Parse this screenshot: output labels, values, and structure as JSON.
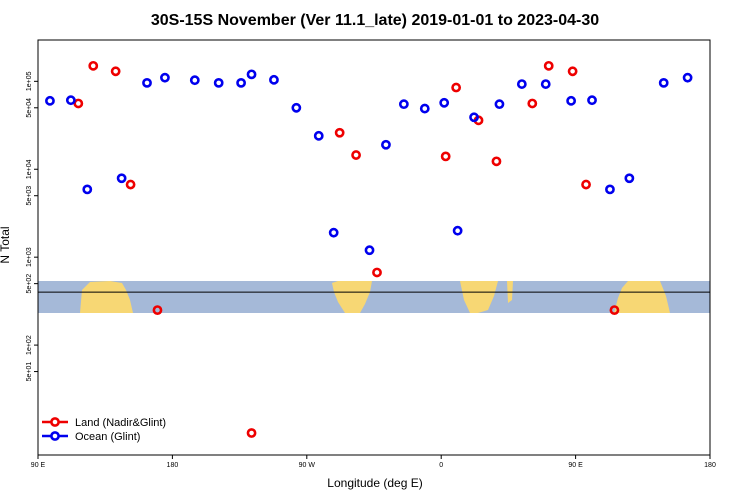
{
  "chart_data": {
    "type": "scatter",
    "title": "30S-15S November (Ver 11.1_late)   2019-01-01 to 2023-04-30",
    "xlabel": "Longitude (deg E)",
    "ylabel": "N Total",
    "xlim": [
      90,
      540
    ],
    "ylog": true,
    "x_ticks": [
      {
        "value": 90,
        "label": "90 E"
      },
      {
        "value": 180,
        "label": "180"
      },
      {
        "value": 270,
        "label": "90 W"
      },
      {
        "value": 360,
        "label": "0"
      },
      {
        "value": 450,
        "label": "90 E"
      },
      {
        "value": 540,
        "label": "180"
      }
    ],
    "y_ticks": [
      {
        "value": 50,
        "label": "5e+01"
      },
      {
        "value": 100,
        "label": "1e+02"
      },
      {
        "value": 500,
        "label": "5e+02"
      },
      {
        "value": 1000,
        "label": "1e+03"
      },
      {
        "value": 5000,
        "label": "5e+03"
      },
      {
        "value": 10000,
        "label": "1e+04"
      },
      {
        "value": 50000,
        "label": "5e+04"
      },
      {
        "value": 100000,
        "label": "1e+05"
      }
    ],
    "reference_line": 400,
    "series": [
      {
        "name": "Land (Nadir&Glint)",
        "color": "#ee0000",
        "points": [
          [
            117,
            56000
          ],
          [
            127,
            150000
          ],
          [
            142,
            130000
          ],
          [
            152,
            6700
          ],
          [
            170,
            250
          ],
          [
            233,
            10
          ],
          [
            292,
            26000
          ],
          [
            303,
            14500
          ],
          [
            317,
            670
          ],
          [
            363,
            14000
          ],
          [
            370,
            85000
          ],
          [
            385,
            36000
          ],
          [
            397,
            12300
          ],
          [
            421,
            56000
          ],
          [
            432,
            150000
          ],
          [
            448,
            130000
          ],
          [
            457,
            6700
          ],
          [
            476,
            250
          ]
        ]
      },
      {
        "name": "Ocean (Glint)",
        "color": "#0000ee",
        "points": [
          [
            98,
            60000
          ],
          [
            112,
            61000
          ],
          [
            123,
            5900
          ],
          [
            146,
            7900
          ],
          [
            163,
            96000
          ],
          [
            175,
            110000
          ],
          [
            195,
            103000
          ],
          [
            211,
            96000
          ],
          [
            226,
            96000
          ],
          [
            233,
            120000
          ],
          [
            248,
            104000
          ],
          [
            263,
            50000
          ],
          [
            278,
            24000
          ],
          [
            288,
            1900
          ],
          [
            312,
            1200
          ],
          [
            323,
            19000
          ],
          [
            335,
            55000
          ],
          [
            349,
            49000
          ],
          [
            362,
            57000
          ],
          [
            371,
            2000
          ],
          [
            382,
            39000
          ],
          [
            399,
            55000
          ],
          [
            414,
            93000
          ],
          [
            430,
            93000
          ],
          [
            447,
            60000
          ],
          [
            461,
            61000
          ],
          [
            473,
            5900
          ],
          [
            486,
            7900
          ],
          [
            509,
            96000
          ],
          [
            525,
            110000
          ]
        ]
      }
    ],
    "legend": {
      "position": "bottom-left"
    }
  }
}
